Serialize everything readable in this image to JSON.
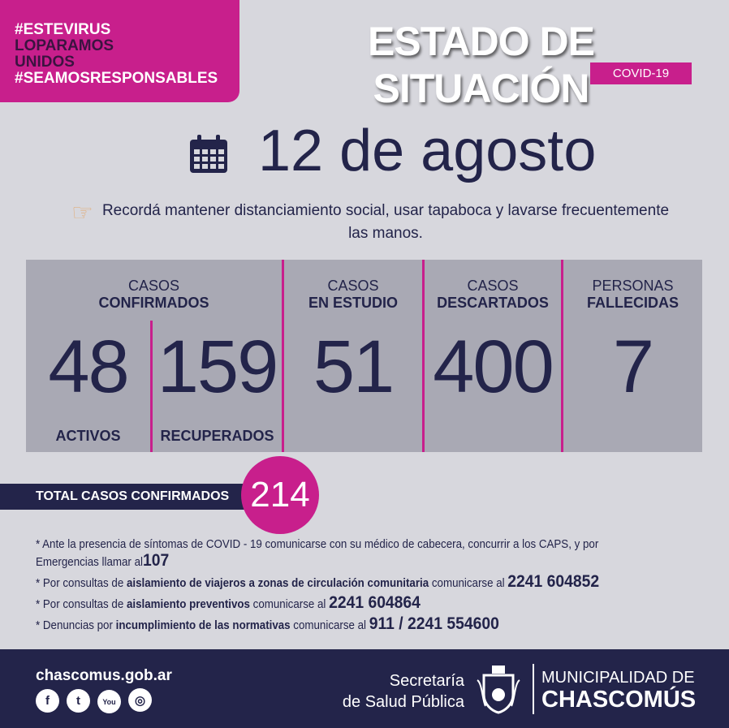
{
  "hashtags": {
    "line1": "#ESTEVIRUS",
    "line2": "LOPARAMOS",
    "line3": "UNIDOS",
    "line4": "#SEAMOSRESPONSABLES"
  },
  "header": {
    "title": "ESTADO DE SITUACIÓN",
    "badge": "COVID-19"
  },
  "date": "12 de agosto",
  "reminder": "Recordá mantener distanciamiento social, usar tapaboca y lavarse frecuentemente las manos.",
  "stats": {
    "confirmed": {
      "label_top": "CASOS",
      "label_bold": "CONFIRMADOS",
      "active": "48",
      "active_label": "ACTIVOS",
      "recovered": "159",
      "recovered_label": "RECUPERADOS"
    },
    "study": {
      "label_top": "CASOS",
      "label_bold": "EN ESTUDIO",
      "value": "51"
    },
    "discarded": {
      "label_top": "CASOS",
      "label_bold": "DESCARTADOS",
      "value": "400"
    },
    "deceased": {
      "label_top": "PERSONAS",
      "label_bold": "FALLECIDAS",
      "value": "7"
    }
  },
  "total": {
    "label": "TOTAL CASOS CONFIRMADOS",
    "value": "214"
  },
  "notes": [
    {
      "pre": "* Ante la presencia de síntomas de COVID - 19 comunicarse con su médico de cabecera, concurrir a los CAPS, y por Emergencias llamar al",
      "bold": "",
      "mid": "",
      "phone": "107"
    },
    {
      "pre": "* Por consultas de ",
      "bold": "aislamiento de viajeros a zonas de circulación comunitaria",
      "mid": " comunicarse al ",
      "phone": "2241 604852"
    },
    {
      "pre": "* Por consultas de ",
      "bold": "aislamiento preventivos",
      "mid": " comunicarse al ",
      "phone": "2241 604864"
    },
    {
      "pre": "* Denuncias por ",
      "bold": "incumplimiento de las normativas",
      "mid": " comunicarse al ",
      "phone": "911 / 2241 554600"
    }
  ],
  "footer": {
    "website": "chascomus.gob.ar",
    "secretaria1": "Secretaría",
    "secretaria2": "de Salud Pública",
    "muni1": "MUNICIPALIDAD DE",
    "muni2": "CHASCOMÚS",
    "social": [
      "facebook-icon",
      "twitter-icon",
      "youtube-icon",
      "instagram-icon"
    ]
  },
  "colors": {
    "magenta": "#c81f8c",
    "navy": "#23244a",
    "background": "#d7d7dd",
    "panel": "#a9a9b4"
  }
}
